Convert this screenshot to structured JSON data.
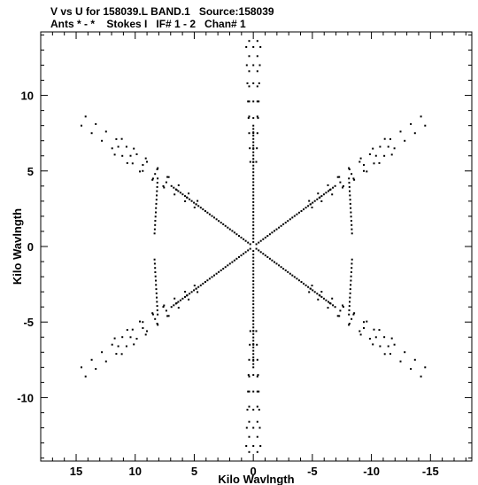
{
  "header": {
    "line1": "V vs U for 158039.L BAND.1   Source:158039",
    "line2": "Ants * - *    Stokes I   IF# 1 - 2   Chan# 1"
  },
  "chart_data": {
    "type": "scatter",
    "title": "V vs U for 158039.L BAND.1   Source:158039",
    "subtitle": "Ants * - *    Stokes I   IF# 1 - 2   Chan# 1",
    "xlabel": "Kilo Wavlngth",
    "ylabel": "Kilo Wavlngth",
    "xlim": [
      18.0,
      -18.5
    ],
    "ylim": [
      -14.2,
      14.2
    ],
    "x_ticks": [
      15,
      10,
      5,
      0,
      -5,
      -10,
      -15
    ],
    "x_tick_labels": [
      "15",
      "10",
      "5",
      "0",
      "-5",
      "-10",
      "-15"
    ],
    "y_ticks": [
      10,
      5,
      0,
      -5,
      -10
    ],
    "y_tick_labels": [
      "10",
      "5",
      "0",
      "-5",
      "-10"
    ],
    "grid": false,
    "marker_color": "#000000",
    "pattern": "Y-shaped array snapshot coverage: six radial arms at angles 90, 30, -30, -90, -150, 150 degrees; each arm has sampled tracks from about 0.3 to 8 kilo-wavelengths, with curved side tracks at constant V near +/-4.5 and +/-13"
  }
}
